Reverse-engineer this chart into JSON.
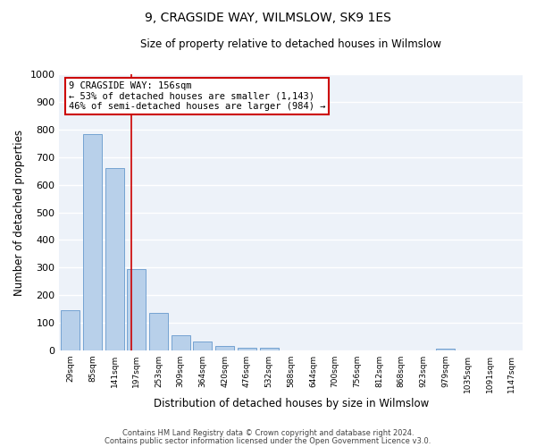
{
  "title": "9, CRAGSIDE WAY, WILMSLOW, SK9 1ES",
  "subtitle": "Size of property relative to detached houses in Wilmslow",
  "xlabel": "Distribution of detached houses by size in Wilmslow",
  "ylabel": "Number of detached properties",
  "bar_labels": [
    "29sqm",
    "85sqm",
    "141sqm",
    "197sqm",
    "253sqm",
    "309sqm",
    "364sqm",
    "420sqm",
    "476sqm",
    "532sqm",
    "588sqm",
    "644sqm",
    "700sqm",
    "756sqm",
    "812sqm",
    "868sqm",
    "923sqm",
    "979sqm",
    "1035sqm",
    "1091sqm",
    "1147sqm"
  ],
  "bar_values": [
    144,
    783,
    660,
    293,
    135,
    56,
    33,
    17,
    8,
    10,
    0,
    0,
    0,
    0,
    0,
    0,
    0,
    7,
    0,
    0,
    0
  ],
  "bar_color": "#b8d0ea",
  "bar_edge_color": "#6699cc",
  "vline_x": 2.78,
  "vline_color": "#cc0000",
  "ylim": [
    0,
    1000
  ],
  "yticks": [
    0,
    100,
    200,
    300,
    400,
    500,
    600,
    700,
    800,
    900,
    1000
  ],
  "annotation_line1": "9 CRAGSIDE WAY: 156sqm",
  "annotation_line2": "← 53% of detached houses are smaller (1,143)",
  "annotation_line3": "46% of semi-detached houses are larger (984) →",
  "annotation_box_color": "#ffffff",
  "annotation_box_edge_color": "#cc0000",
  "footer_line1": "Contains HM Land Registry data © Crown copyright and database right 2024.",
  "footer_line2": "Contains public sector information licensed under the Open Government Licence v3.0.",
  "background_color": "#ffffff",
  "plot_bg_color": "#edf2f9",
  "grid_color": "#ffffff"
}
